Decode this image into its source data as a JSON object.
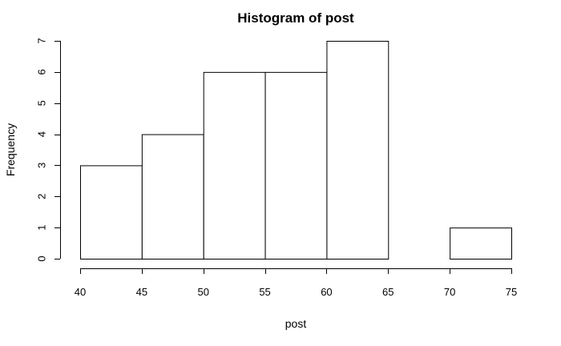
{
  "chart_data": {
    "type": "bar",
    "title": "Histogram of post",
    "xlabel": "post",
    "ylabel": "Frequency",
    "bin_edges": [
      40,
      45,
      50,
      55,
      60,
      65,
      70,
      75
    ],
    "values": [
      3,
      4,
      6,
      6,
      7,
      0,
      1
    ],
    "x_ticks": [
      40,
      45,
      50,
      55,
      60,
      65,
      70,
      75
    ],
    "y_ticks": [
      0,
      1,
      2,
      3,
      4,
      5,
      6,
      7
    ],
    "xlim": [
      40,
      75
    ],
    "ylim": [
      0,
      7
    ],
    "grid": false,
    "legend": "none"
  }
}
